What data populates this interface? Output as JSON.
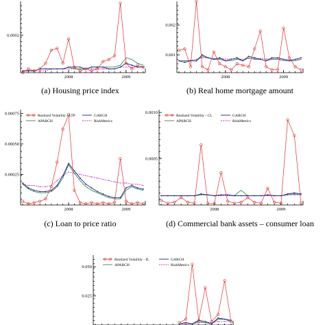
{
  "captions": {
    "a": "(a) Housing price index",
    "b": "(b) Real home mortgage amount",
    "c": "(c) Loan to price ratio",
    "d": "(d) Commercial bank assets – consumer loan"
  },
  "colors": {
    "realized": "#e0302c",
    "garch": "#1a237e",
    "aparch": "#2e8b57",
    "riskmetrics": "#cc33cc"
  },
  "chart_data": [
    {
      "id": "a",
      "type": "line",
      "title": "(a) Housing price index",
      "x_ticks": [
        "2008",
        "2009"
      ],
      "y_ticks": [
        "0.0002"
      ],
      "ylim": [
        0,
        0.00038
      ],
      "x_range": [
        0,
        22
      ],
      "series": [
        {
          "key": "realized",
          "values": [
            0.0,
            2e-05,
            1e-05,
            2e-05,
            5e-05,
            0.00012,
            0.00013,
            5e-05,
            0.00018,
            3e-05,
            1e-05,
            2e-05,
            1e-05,
            2e-05,
            6e-05,
            7e-05,
            9e-05,
            0.00037,
            5e-05,
            2e-05,
            4e-05,
            3e-05
          ]
        },
        {
          "key": "garch",
          "values": [
            1e-05,
            1e-05,
            1e-05,
            2e-05,
            2e-05,
            2e-05,
            2e-05,
            2e-05,
            3e-05,
            3e-05,
            3e-05,
            2e-05,
            3e-05,
            3e-05,
            3e-05,
            2e-05,
            2e-05,
            3e-05,
            5e-05,
            4e-05,
            3e-05,
            3e-05
          ]
        },
        {
          "key": "aparch",
          "values": [
            1e-05,
            1e-05,
            1e-05,
            2e-05,
            2e-05,
            2e-05,
            2e-05,
            2e-05,
            3e-05,
            2e-05,
            2e-05,
            2e-05,
            3e-05,
            3e-05,
            3e-05,
            3e-05,
            3e-05,
            4e-05,
            8e-05,
            7e-05,
            5e-05,
            4e-05
          ]
        },
        {
          "key": "riskmetrics",
          "values": [
            1e-05,
            1e-05,
            1e-05,
            1e-05,
            1e-05,
            2e-05,
            2e-05,
            2e-05,
            2e-05,
            2e-05,
            2e-05,
            2e-05,
            2e-05,
            2e-05,
            2e-05,
            2e-05,
            2e-05,
            3e-05,
            3e-05,
            3e-05,
            3e-05,
            3e-05
          ]
        }
      ]
    },
    {
      "id": "b",
      "type": "line",
      "title": "(b) Real home mortgage amount",
      "x_ticks": [
        "2008",
        "2009"
      ],
      "y_ticks": [
        "0.002",
        "0.001"
      ],
      "ylim": [
        0.0004,
        0.0028
      ],
      "x_range": [
        0,
        22
      ],
      "series": [
        {
          "key": "realized",
          "values": [
            0.00115,
            0.0012,
            0.0006,
            0.0028,
            0.0006,
            0.0005,
            0.0011,
            0.0007,
            0.0006,
            0.0005,
            0.0007,
            0.00065,
            0.0006,
            0.0012,
            0.0018,
            0.0006,
            0.0005,
            0.0005,
            0.0019,
            0.0009,
            0.0006,
            0.0005
          ]
        },
        {
          "key": "garch",
          "values": [
            0.0008,
            0.00075,
            0.0008,
            0.0008,
            0.001,
            0.0009,
            0.00085,
            0.0009,
            0.0008,
            0.00085,
            0.0009,
            0.0008,
            0.00095,
            0.0009,
            0.00085,
            0.0008,
            0.0009,
            0.0009,
            0.00085,
            0.0008,
            0.00085,
            0.0009
          ]
        },
        {
          "key": "aparch",
          "values": [
            0.0008,
            0.0008,
            0.0008,
            0.0008,
            0.00095,
            0.0009,
            0.00085,
            0.00085,
            0.0008,
            0.0008,
            0.00085,
            0.0008,
            0.0009,
            0.00085,
            0.00085,
            0.0008,
            0.00085,
            0.00085,
            0.0008,
            0.0008,
            0.0008,
            0.00085
          ]
        },
        {
          "key": "riskmetrics",
          "values": [
            0.0008,
            0.0008,
            0.00082,
            0.00085,
            0.0009,
            0.0009,
            0.00088,
            0.00088,
            0.00086,
            0.00086,
            0.00086,
            0.00085,
            0.00088,
            0.00088,
            0.00088,
            0.00086,
            0.00086,
            0.00086,
            0.00085,
            0.00084,
            0.00084,
            0.00085
          ]
        }
      ]
    },
    {
      "id": "c",
      "type": "line",
      "title": "(c) Loan to price ratio",
      "x_ticks": [
        "2008",
        "2009"
      ],
      "y_ticks": [
        "0.00075",
        "0.00050",
        "0.00025"
      ],
      "ylim": [
        0,
        0.00078
      ],
      "x_range": [
        0,
        22
      ],
      "legend": [
        "Realized Volatility - LTP",
        "GARCH",
        "APARCH",
        "RiskMetrics"
      ],
      "legend_position": "top",
      "series": [
        {
          "key": "realized",
          "name": "Realized Volatility - LTP",
          "values": [
            3e-05,
            1e-05,
            2e-05,
            3e-05,
            5e-05,
            0.00015,
            0.00035,
            0.00062,
            0.00074,
            0.00012,
            2e-05,
            1e-05,
            2e-05,
            1e-05,
            2e-05,
            1e-05,
            2e-05,
            0.00038,
            3e-05,
            1e-05,
            2e-05,
            1e-05
          ]
        },
        {
          "key": "garch",
          "name": "GARCH",
          "values": [
            0.00018,
            0.00014,
            0.00012,
            0.00011,
            0.00011,
            0.00012,
            0.00016,
            0.00024,
            0.00034,
            0.00028,
            0.00022,
            0.00017,
            0.00014,
            0.00011,
            9e-05,
            7e-05,
            6e-05,
            6e-05,
            0.00014,
            0.00016,
            0.00014,
            0.00013
          ]
        },
        {
          "key": "aparch",
          "name": "APARCH",
          "values": [
            0.00017,
            0.00013,
            0.00011,
            0.0001,
            0.0001,
            0.00011,
            0.00015,
            0.00022,
            0.00033,
            0.00026,
            0.0002,
            0.00015,
            0.00012,
            0.0001,
            8e-05,
            6e-05,
            5e-05,
            5e-05,
            0.00012,
            0.00015,
            0.00013,
            0.00012
          ]
        },
        {
          "key": "riskmetrics",
          "name": "RiskMetrics",
          "values": [
            0.00017,
            0.00016,
            0.00016,
            0.00015,
            0.00015,
            0.00016,
            0.0002,
            0.00024,
            0.00027,
            0.00026,
            0.00025,
            0.00024,
            0.00023,
            0.00022,
            0.00021,
            0.0002,
            0.00019,
            0.00018,
            0.00018,
            0.00017,
            0.00017,
            0.00016
          ]
        }
      ]
    },
    {
      "id": "d",
      "type": "line",
      "title": "(d) Commercial bank assets – consumer loan",
      "x_ticks": [
        "2008",
        "2009"
      ],
      "y_ticks": [
        "0.0010",
        "0.0005"
      ],
      "ylim": [
        0,
        0.00103
      ],
      "x_range": [
        0,
        22
      ],
      "legend": [
        "Realized Volatility - CL",
        "GARCH",
        "APARCH",
        "RiskMetrics"
      ],
      "legend_position": "top",
      "series": [
        {
          "key": "realized",
          "name": "Realized Volatility - CL",
          "values": [
            5e-05,
            2e-05,
            3e-05,
            8e-05,
            3e-05,
            2e-05,
            0.00065,
            2e-05,
            2e-05,
            0.00035,
            4e-05,
            2e-05,
            3e-05,
            8e-05,
            3e-05,
            2e-05,
            0.00018,
            3e-05,
            2e-05,
            0.00092,
            0.00075,
            2e-05
          ]
        },
        {
          "key": "garch",
          "name": "GARCH",
          "values": [
            0.0001,
            0.0001,
            0.0001,
            0.0001,
            0.0001,
            0.0001,
            0.00012,
            0.00011,
            0.0001,
            0.00011,
            0.00011,
            0.0001,
            0.0001,
            0.0001,
            0.0001,
            0.0001,
            0.00011,
            0.0001,
            0.0001,
            0.00012,
            0.00013,
            0.00012
          ]
        },
        {
          "key": "aparch",
          "name": "APARCH",
          "values": [
            0.0001,
            0.0001,
            0.0001,
            0.0001,
            0.0001,
            0.0001,
            0.00011,
            0.00011,
            0.0001,
            0.00011,
            0.00011,
            0.0001,
            0.00016,
            0.0001,
            0.0001,
            0.0001,
            0.00011,
            0.0001,
            0.0001,
            0.00011,
            0.00012,
            0.00011
          ]
        },
        {
          "key": "riskmetrics",
          "name": "RiskMetrics",
          "values": [
            0.0001,
            0.0001,
            0.0001,
            0.0001,
            0.0001,
            0.0001,
            0.00011,
            0.00011,
            0.0001,
            0.0001,
            0.0001,
            0.0001,
            0.0001,
            0.0001,
            0.0001,
            0.0001,
            0.0001,
            0.0001,
            0.0001,
            0.00011,
            0.00011,
            0.00011
          ]
        }
      ]
    },
    {
      "id": "e",
      "type": "line",
      "title": "",
      "y_ticks": [
        "0.050",
        "0.025"
      ],
      "ylim": [
        0,
        0.06
      ],
      "x_range": [
        0,
        22
      ],
      "legend": [
        "Realized Volatility - IL",
        "GARCH",
        "APARCH",
        "RiskMetrics"
      ],
      "legend_position": "top",
      "series": [
        {
          "key": "realized",
          "name": "Realized Volatility - IL",
          "values": [
            null,
            null,
            null,
            null,
            null,
            null,
            null,
            null,
            null,
            null,
            null,
            null,
            null,
            0.002,
            0.005,
            0.052,
            0.004,
            0.032,
            0.003,
            0.009,
            0.038,
            0.003
          ]
        },
        {
          "key": "garch",
          "name": "GARCH",
          "values": [
            null,
            null,
            null,
            null,
            null,
            null,
            null,
            null,
            null,
            null,
            null,
            null,
            null,
            0.001,
            0.002,
            0.001,
            0.004,
            0.003,
            0.001,
            0.006,
            0.005,
            0.004
          ]
        },
        {
          "key": "aparch",
          "name": "APARCH",
          "values": [
            null,
            null,
            null,
            null,
            null,
            null,
            null,
            null,
            null,
            null,
            null,
            null,
            null,
            0.001,
            0.002,
            0.001,
            0.003,
            0.002,
            0.001,
            0.005,
            0.005,
            0.003
          ]
        },
        {
          "key": "riskmetrics",
          "name": "RiskMetrics",
          "values": [
            null,
            null,
            null,
            null,
            null,
            null,
            null,
            null,
            null,
            null,
            null,
            null,
            null,
            0.001,
            0.001,
            0.001,
            0.002,
            0.002,
            0.002,
            0.003,
            0.003,
            0.003
          ]
        }
      ]
    }
  ]
}
